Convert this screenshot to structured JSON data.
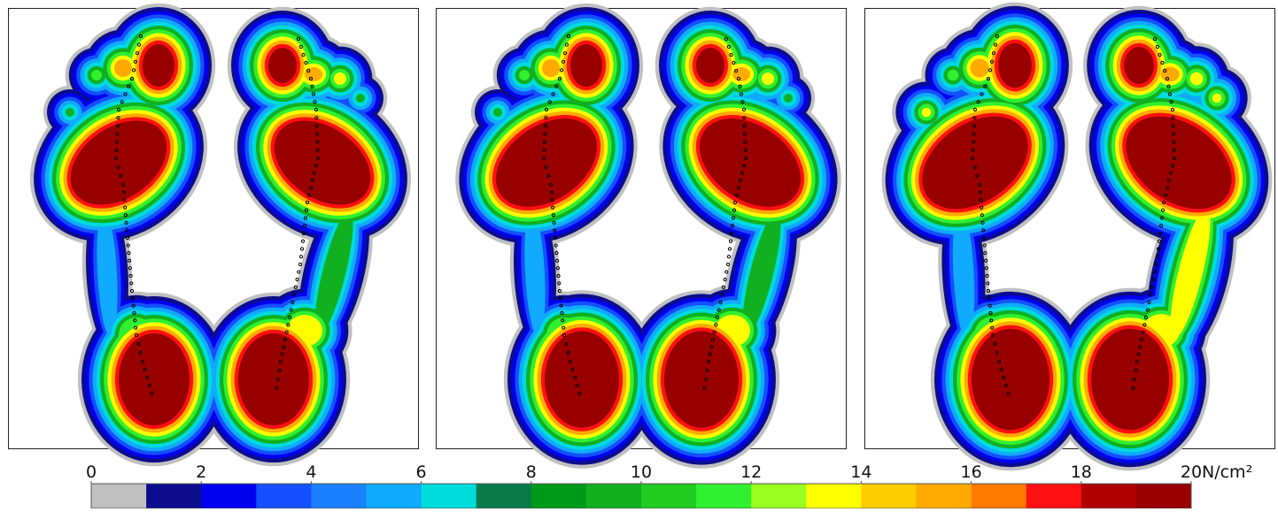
{
  "colorbar": {
    "range": [
      0,
      20
    ],
    "ticks": [
      0,
      2,
      4,
      6,
      8,
      10,
      12,
      14,
      16,
      18,
      20
    ],
    "unit": "N/cm²",
    "colors": [
      "#c0c0c0",
      "#0c0c8c",
      "#0000ee",
      "#1450ff",
      "#1a80ff",
      "#10aaff",
      "#00dcdc",
      "#0a7a4a",
      "#009a1a",
      "#10b020",
      "#20cc20",
      "#30f030",
      "#9aff20",
      "#ffff00",
      "#ffcc00",
      "#ffaa00",
      "#ff7a00",
      "#ff1010",
      "#b00000",
      "#980000"
    ]
  }
}
